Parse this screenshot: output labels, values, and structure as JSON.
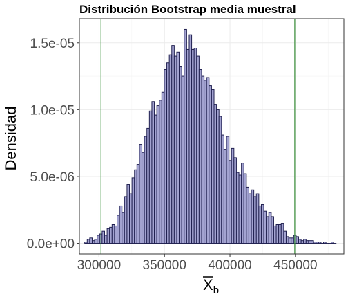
{
  "chart_data": {
    "type": "bar",
    "title": "Distribución Bootstrap media muestral",
    "xlabel": "X",
    "xlabel_subscript": "b",
    "ylabel": "Densidad",
    "xlim": [
      285000,
      487000
    ],
    "ylim": [
      -8e-07,
      1.68e-05
    ],
    "x_ticks": [
      300000,
      350000,
      400000,
      450000
    ],
    "x_tick_labels": [
      "300000",
      "350000",
      "400000",
      "450000"
    ],
    "y_ticks": [
      0,
      5e-06,
      1e-05,
      1.5e-05
    ],
    "y_tick_labels": [
      "0.0e+00",
      "5.0e-06",
      "1.0e-05",
      "1.5e-05"
    ],
    "bin_width": 1900,
    "bin_centers": [
      290000,
      291900,
      293800,
      295700,
      297600,
      299500,
      301400,
      303300,
      305200,
      307100,
      309000,
      310900,
      312800,
      314700,
      316600,
      318500,
      320400,
      322300,
      324200,
      326100,
      328000,
      329900,
      331800,
      333700,
      335600,
      337500,
      339400,
      341300,
      343200,
      345100,
      347000,
      348900,
      350800,
      352700,
      354600,
      356500,
      358400,
      360300,
      362200,
      364100,
      366000,
      367900,
      369800,
      371700,
      373600,
      375500,
      377400,
      379300,
      381200,
      383100,
      385000,
      386900,
      388800,
      390700,
      392600,
      394500,
      396400,
      398300,
      400200,
      402100,
      404000,
      405900,
      407800,
      409700,
      411600,
      413500,
      415400,
      417300,
      419200,
      421100,
      423000,
      424900,
      426800,
      428700,
      430600,
      432500,
      434400,
      436300,
      438200,
      440100,
      442000,
      443900,
      445800,
      447700,
      449600,
      451500,
      453400,
      455300,
      457200,
      459100,
      461000,
      462900,
      464800,
      466700,
      468600,
      470500,
      472400,
      474400,
      476300,
      478200,
      480100
    ],
    "values": [
      1e-07,
      3e-07,
      4e-07,
      2e-07,
      3e-07,
      6e-07,
      7e-07,
      9e-07,
      6e-07,
      1.1e-06,
      1.2e-06,
      1.4e-06,
      1.3e-06,
      2.1e-06,
      2.8e-06,
      2.3e-06,
      3.5e-06,
      4.4e-06,
      3.7e-06,
      4.9e-06,
      5.5e-06,
      5.9e-06,
      7.4e-06,
      6.8e-06,
      8e-06,
      8.6e-06,
      9.9e-06,
      1.06e-05,
      9.6e-06,
      1.03e-05,
      1.07e-05,
      1.13e-05,
      1.3e-05,
      1.35e-05,
      1.41e-05,
      1.48e-05,
      1.4e-05,
      1.43e-05,
      1.32e-05,
      1.25e-05,
      1.6e-05,
      1.45e-05,
      1.56e-05,
      1.45e-05,
      1.46e-05,
      1.4e-05,
      1.3e-05,
      1.25e-05,
      1.22e-05,
      1.24e-05,
      1.18e-05,
      1.15e-05,
      1.04e-05,
      1e-05,
      9.5e-06,
      8.1e-06,
      7e-06,
      8e-06,
      6.2e-06,
      7.1e-06,
      6.4e-06,
      5.3e-06,
      5.1e-06,
      6e-06,
      5.2e-06,
      4.2e-06,
      3.7e-06,
      4e-06,
      3.5e-06,
      3.7e-06,
      2.8e-06,
      2.9e-06,
      2.4e-06,
      2e-06,
      2.3e-06,
      2e-06,
      1.3e-06,
      1.4e-06,
      1.4e-06,
      1.5e-06,
      9e-07,
      5e-07,
      4e-07,
      4e-07,
      6e-07,
      5e-07,
      3e-07,
      2e-07,
      3e-07,
      2e-07,
      2e-07,
      2e-07,
      1e-07,
      1e-07,
      1e-07,
      0,
      1e-07,
      0,
      0,
      1e-07,
      0
    ],
    "vlines": [
      301500,
      449500
    ],
    "grid": true,
    "colors": {
      "bar_fill": "#a3a3d1",
      "bar_stroke": "#1f1f4f",
      "vline": "#3a8f3a",
      "grid": "#ebebeb"
    }
  }
}
